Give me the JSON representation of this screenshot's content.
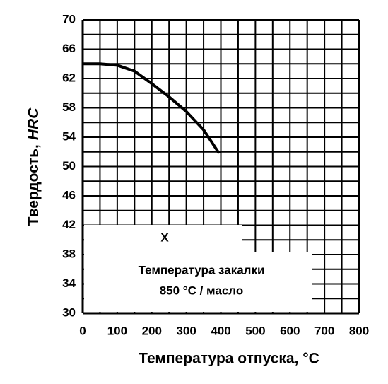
{
  "chart_data": {
    "type": "line",
    "ylabel": {
      "text": "Твердость,",
      "unit": "HRC"
    },
    "xlabel": "Температура отпуска, °C",
    "x": [
      0,
      50,
      100,
      150,
      200,
      250,
      300,
      350,
      395
    ],
    "series": [
      {
        "color": "#000000",
        "values": [
          64,
          64,
          63.8,
          63,
          61.3,
          59.5,
          57.5,
          55,
          51.8
        ]
      }
    ],
    "xlim": [
      0,
      800
    ],
    "ylim": [
      30,
      70
    ],
    "xticks": [
      0,
      100,
      200,
      300,
      400,
      500,
      600,
      700,
      800
    ],
    "yticks": [
      30,
      34,
      38,
      42,
      46,
      50,
      54,
      58,
      62,
      66,
      70
    ],
    "grid": true,
    "grid_step": {
      "x": 50,
      "y": 2
    },
    "annotations": [
      "X",
      "Температура закалки",
      "850 °C / масло"
    ]
  }
}
